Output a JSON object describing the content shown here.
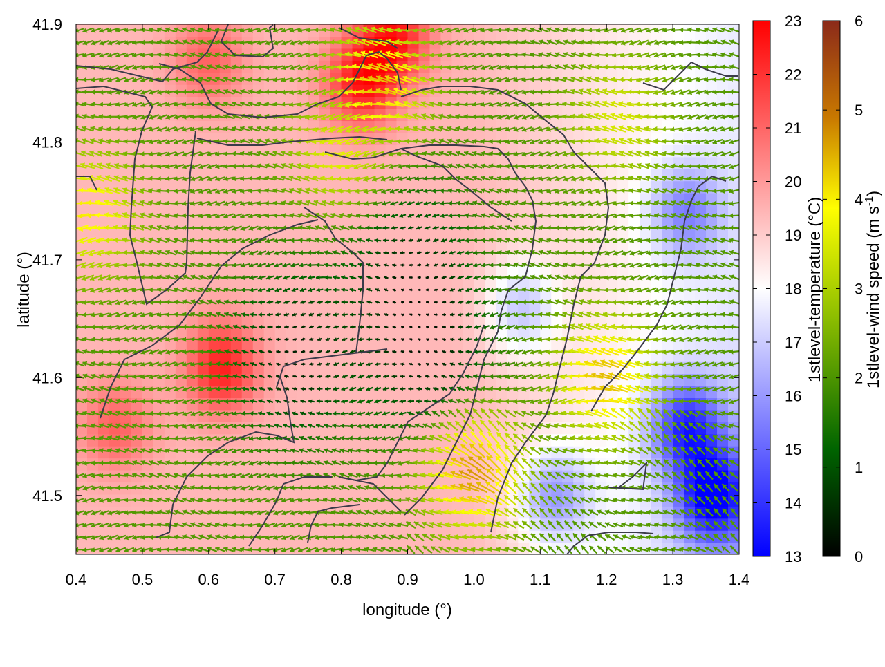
{
  "chart_data": {
    "type": "heatmap",
    "title": "",
    "xlabel": "longitude (°)",
    "ylabel": "latitude (°)",
    "xlim": [
      0.4,
      1.4
    ],
    "ylim": [
      41.45,
      41.9
    ],
    "xticks": [
      "0.4",
      "0.5",
      "0.6",
      "0.7",
      "0.8",
      "0.9",
      "1.0",
      "1.1",
      "1.2",
      "1.3",
      "1.4"
    ],
    "yticks": [
      "41.5",
      "41.6",
      "41.7",
      "41.8",
      "41.9"
    ],
    "grid": false,
    "temperature": {
      "label": "1stlevel-temperature (°C)",
      "range": [
        13,
        23
      ],
      "ticks": [
        "13",
        "14",
        "15",
        "16",
        "17",
        "18",
        "19",
        "20",
        "21",
        "22",
        "23"
      ],
      "colors": [
        "#0000ff",
        "#ffffff",
        "#ff0000"
      ],
      "hotspots": [
        {
          "lon": 0.62,
          "lat": 41.61,
          "value": 22.5
        },
        {
          "lon": 0.83,
          "lat": 41.85,
          "value": 22.5
        },
        {
          "lon": 0.88,
          "lat": 41.89,
          "value": 22.5
        },
        {
          "lon": 0.6,
          "lat": 41.87,
          "value": 21
        },
        {
          "lon": 0.46,
          "lat": 41.56,
          "value": 21
        },
        {
          "lon": 1.36,
          "lat": 41.5,
          "value": 13.5
        },
        {
          "lon": 1.32,
          "lat": 41.56,
          "value": 14.5
        },
        {
          "lon": 1.12,
          "lat": 41.5,
          "value": 16
        },
        {
          "lon": 1.32,
          "lat": 41.74,
          "value": 16
        },
        {
          "lon": 1.07,
          "lat": 41.66,
          "value": 16.5
        }
      ]
    },
    "wind": {
      "label": "1stlevel-wind speed (m s",
      "label_exponent": "-1",
      "label_close": ")",
      "range": [
        0,
        6
      ],
      "ticks": [
        "0",
        "1",
        "2",
        "3",
        "4",
        "5",
        "6"
      ],
      "colors": [
        "#000000",
        "#006400",
        "#8fbf00",
        "#ffff00",
        "#c87800",
        "#8b2a1a"
      ],
      "direction": "from east (westward arrows)",
      "fast_zones": [
        {
          "lon": 0.86,
          "lat": 41.85,
          "speed": 4.2
        },
        {
          "lon": 1.0,
          "lat": 41.52,
          "speed": 4.6
        },
        {
          "lon": 1.2,
          "lat": 41.6,
          "speed": 4.2
        },
        {
          "lon": 0.42,
          "lat": 41.74,
          "speed": 3.8
        },
        {
          "lon": 0.8,
          "lat": 41.79,
          "speed": 3.4
        },
        {
          "lon": 1.22,
          "lat": 41.82,
          "speed": 3.2
        }
      ],
      "calm_zones": [
        {
          "lon": 0.73,
          "lat": 41.62,
          "speed": 0.4
        },
        {
          "lon": 0.93,
          "lat": 41.62,
          "speed": 0.5
        },
        {
          "lon": 0.9,
          "lat": 41.7,
          "speed": 0.8
        }
      ]
    }
  }
}
